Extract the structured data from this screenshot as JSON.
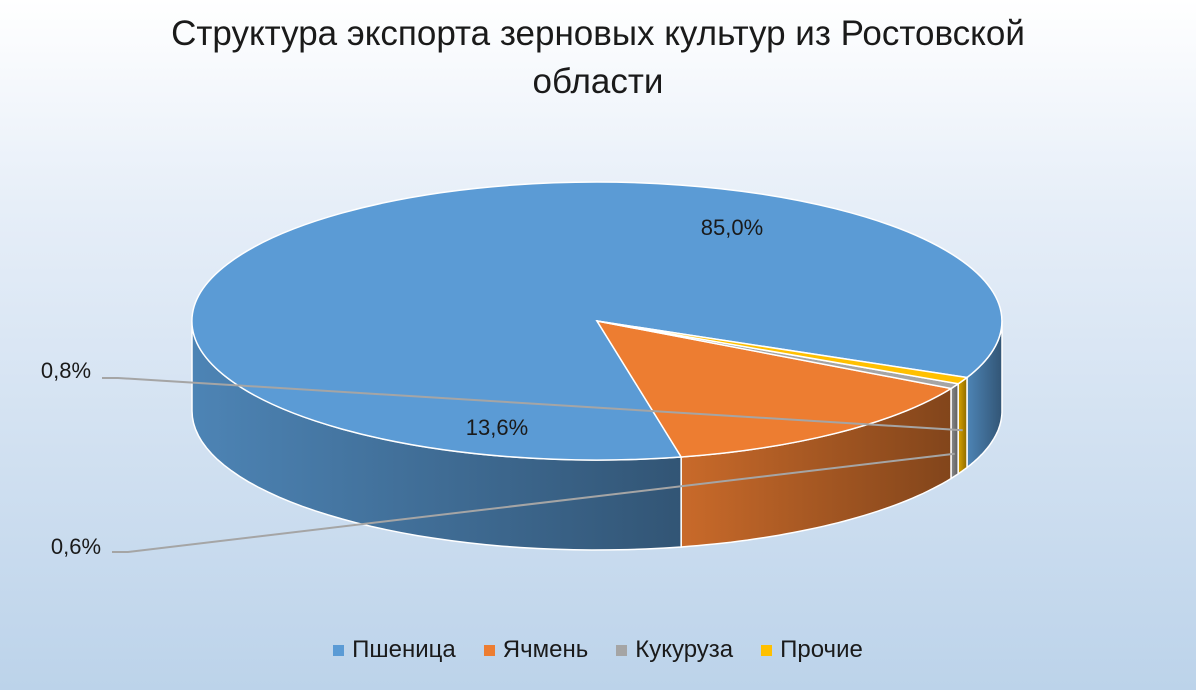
{
  "title": {
    "line1": "Структура экспорта зерновых культур из Ростовской",
    "line2": "области"
  },
  "chart_data": {
    "type": "pie",
    "style": "3d",
    "title": "Структура экспорта зерновых культур из Ростовской области",
    "categories": [
      "Пшеница",
      "Ячмень",
      "Кукуруза",
      "Прочие"
    ],
    "values": [
      85.0,
      13.6,
      0.6,
      0.8
    ],
    "data_labels": [
      "85,0%",
      "13,6%",
      "0,6%",
      "0,8%"
    ],
    "colors": [
      "#5b9bd5",
      "#ed7d31",
      "#a5a5a5",
      "#ffc000"
    ],
    "legend_position": "bottom"
  }
}
